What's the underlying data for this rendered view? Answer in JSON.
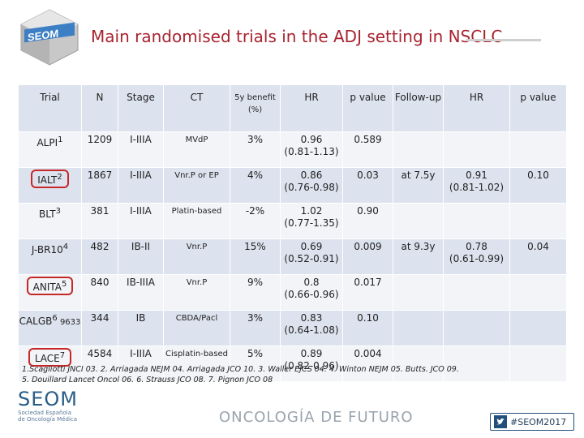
{
  "header": {
    "title": "Main randomised trials in the ADJ setting in NSCLC",
    "logo_text": "SEOM"
  },
  "table": {
    "columns": [
      "Trial",
      "N",
      "Stage",
      "CT",
      "5y benefit (%)",
      "HR",
      "p value",
      "Follow-up",
      "HR",
      "p value"
    ],
    "rows": [
      {
        "trial": "ALPI",
        "ref": "1",
        "n": "1209",
        "stage": "I-IIIA",
        "ct": "MVdP",
        "benefit": "3%",
        "hr": "0.96",
        "ci": "(0.81-1.13)",
        "p": "0.589"
      },
      {
        "trial": "IALT",
        "ref": "2",
        "n": "1867",
        "stage": "I-IIIA",
        "ct": "Vnr.P or EP",
        "benefit": "4%",
        "hr": "0.86",
        "ci": "(0.76-0.98)",
        "p": "0.03"
      },
      {
        "trial": "BLT",
        "ref": "3",
        "n": "381",
        "stage": "I-IIIA",
        "ct": "Platin-based",
        "benefit": "-2%",
        "hr": "1.02",
        "ci": "(0.77-1.35)",
        "p": "0.90"
      },
      {
        "trial": "J-BR10",
        "ref": "4",
        "n": "482",
        "stage": "IB-II",
        "ct": "Vnr.P",
        "benefit": "15%",
        "hr": "0.69",
        "ci": "(0.52-0.91)",
        "p": "0.009"
      },
      {
        "trial": "ANITA",
        "ref": "5",
        "n": "840",
        "stage": "IB-IIIA",
        "ct": "Vnr.P",
        "benefit": "9%",
        "hr": "0.8",
        "ci": "(0.66-0.96)",
        "p": "0.017"
      },
      {
        "trial": "CALGB",
        "ref": "6",
        "suffix": " 9633",
        "n": "344",
        "stage": "IB",
        "ct": "CBDA/Pacl",
        "benefit": "3%",
        "hr": "0.83",
        "ci": "(0.64-1.08)",
        "p": "0.10"
      },
      {
        "trial": "LACE",
        "ref": "7",
        "n": "4584",
        "stage": "I-IIIA",
        "ct": "Cisplatin-based",
        "benefit": "5%",
        "hr": "0.89",
        "ci": "(0.82-0.96)",
        "p": "0.004"
      }
    ],
    "followup": [
      {
        "followup": "at 7.5y",
        "hr": "0.91",
        "ci": "(0.81-1.02)",
        "p": "0.10"
      },
      {
        "followup": "at 9.3y",
        "hr": "0.78",
        "ci": "(0.61-0.99)",
        "p": "0.04"
      }
    ]
  },
  "footnote": {
    "line1": "1.Scagliotti JNCI 03. 2. Arriagada NEJM 04. Arriagada JCO 10. 3. Waller EJCS 04. 4. Winton NEJM 05. Butts. JCO 09.",
    "line2": "5. Douillard Lancet Oncol 06. 6. Strauss JCO 08. 7. Pignon JCO 08"
  },
  "footer": {
    "logo_word": "SEOM",
    "logo_sub1": "Sociedad Española",
    "logo_sub2": "de Oncología Médica",
    "tagline": "ONCOLOGÍA DE FUTURO",
    "hashtag": "#SEOM2017"
  },
  "colors": {
    "title": "#a8232f",
    "row_band": "#dde3ee",
    "highlight_box": "#c62828"
  }
}
